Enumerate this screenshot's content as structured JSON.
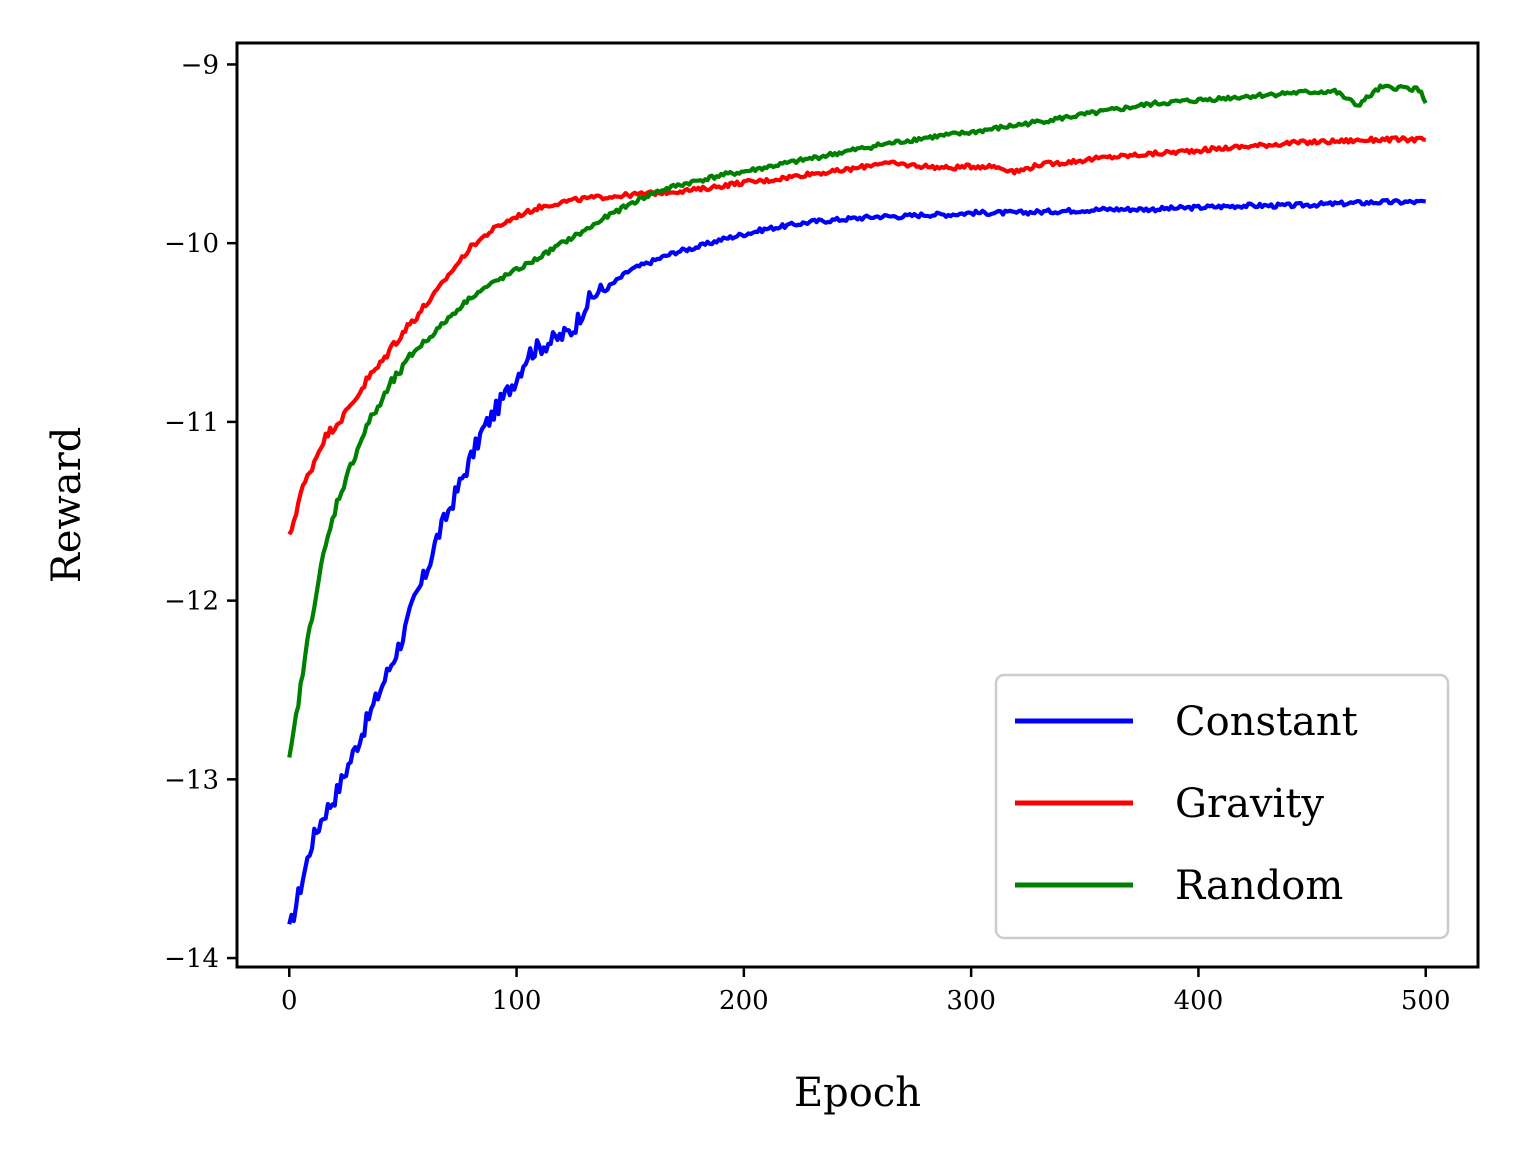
{
  "chart_data": {
    "type": "line",
    "title": "",
    "xlabel": "Epoch",
    "ylabel": "Reward",
    "xlim": [
      -23,
      523
    ],
    "ylim": [
      -14.05,
      -8.88
    ],
    "x_ticks": [
      0,
      100,
      200,
      300,
      400,
      500
    ],
    "x_tick_labels": [
      "0",
      "100",
      "200",
      "300",
      "400",
      "500"
    ],
    "y_ticks": [
      -14,
      -13,
      -12,
      -11,
      -10,
      -9
    ],
    "y_tick_labels": [
      "−14",
      "−13",
      "−12",
      "−11",
      "−10",
      "−9"
    ],
    "grid": false,
    "legend_position": "lower right",
    "series": [
      {
        "name": "Constant",
        "color": "#0000ff",
        "x": [
          0,
          5,
          10,
          15,
          20,
          25,
          30,
          35,
          40,
          45,
          50,
          55,
          60,
          65,
          70,
          75,
          80,
          85,
          90,
          95,
          100,
          105,
          110,
          115,
          120,
          125,
          130,
          135,
          140,
          145,
          150,
          160,
          170,
          180,
          190,
          200,
          210,
          220,
          230,
          240,
          250,
          260,
          270,
          280,
          290,
          300,
          320,
          340,
          360,
          380,
          400,
          420,
          440,
          460,
          480,
          490,
          500
        ],
        "y": [
          -13.85,
          -13.6,
          -13.35,
          -13.2,
          -13.1,
          -12.95,
          -12.8,
          -12.65,
          -12.5,
          -12.35,
          -12.2,
          -12.0,
          -11.85,
          -11.65,
          -11.5,
          -11.35,
          -11.2,
          -11.05,
          -10.95,
          -10.85,
          -10.75,
          -10.62,
          -10.58,
          -10.55,
          -10.52,
          -10.48,
          -10.35,
          -10.28,
          -10.25,
          -10.2,
          -10.15,
          -10.1,
          -10.05,
          -10.02,
          -9.98,
          -9.95,
          -9.92,
          -9.9,
          -9.88,
          -9.87,
          -9.86,
          -9.85,
          -9.85,
          -9.84,
          -9.84,
          -9.83,
          -9.83,
          -9.82,
          -9.81,
          -9.81,
          -9.8,
          -9.79,
          -9.79,
          -9.78,
          -9.77,
          -9.77,
          -9.77
        ]
      },
      {
        "name": "Gravity",
        "color": "#ff0000",
        "x": [
          0,
          5,
          10,
          15,
          20,
          25,
          30,
          35,
          40,
          45,
          50,
          55,
          60,
          70,
          80,
          90,
          100,
          110,
          120,
          130,
          140,
          150,
          160,
          170,
          180,
          190,
          200,
          210,
          220,
          230,
          240,
          250,
          260,
          270,
          280,
          290,
          300,
          310,
          320,
          330,
          340,
          360,
          380,
          400,
          420,
          440,
          460,
          480,
          500
        ],
        "y": [
          -11.65,
          -11.4,
          -11.25,
          -11.1,
          -11.02,
          -10.95,
          -10.85,
          -10.75,
          -10.68,
          -10.58,
          -10.5,
          -10.42,
          -10.35,
          -10.18,
          -10.02,
          -9.92,
          -9.85,
          -9.8,
          -9.77,
          -9.75,
          -9.74,
          -9.73,
          -9.72,
          -9.71,
          -9.7,
          -9.68,
          -9.66,
          -9.65,
          -9.63,
          -9.61,
          -9.6,
          -9.58,
          -9.55,
          -9.56,
          -9.57,
          -9.58,
          -9.57,
          -9.57,
          -9.6,
          -9.56,
          -9.55,
          -9.52,
          -9.5,
          -9.48,
          -9.46,
          -9.44,
          -9.43,
          -9.42,
          -9.42
        ]
      },
      {
        "name": "Random",
        "color": "#008000",
        "x": [
          0,
          3,
          6,
          9,
          12,
          15,
          18,
          21,
          24,
          27,
          30,
          35,
          40,
          45,
          50,
          55,
          60,
          70,
          80,
          90,
          100,
          110,
          120,
          130,
          140,
          150,
          160,
          170,
          180,
          190,
          200,
          220,
          240,
          260,
          280,
          300,
          320,
          340,
          360,
          380,
          400,
          420,
          440,
          460,
          470,
          480,
          490,
          497,
          500
        ],
        "y": [
          -12.9,
          -12.65,
          -12.4,
          -12.15,
          -11.95,
          -11.75,
          -11.6,
          -11.45,
          -11.35,
          -11.25,
          -11.15,
          -11.0,
          -10.9,
          -10.78,
          -10.7,
          -10.6,
          -10.55,
          -10.42,
          -10.3,
          -10.22,
          -10.15,
          -10.08,
          -10.0,
          -9.93,
          -9.85,
          -9.78,
          -9.72,
          -9.68,
          -9.65,
          -9.62,
          -9.6,
          -9.55,
          -9.5,
          -9.45,
          -9.41,
          -9.38,
          -9.34,
          -9.3,
          -9.26,
          -9.22,
          -9.2,
          -9.18,
          -9.16,
          -9.15,
          -9.23,
          -9.13,
          -9.13,
          -9.14,
          -9.21
        ]
      }
    ]
  }
}
